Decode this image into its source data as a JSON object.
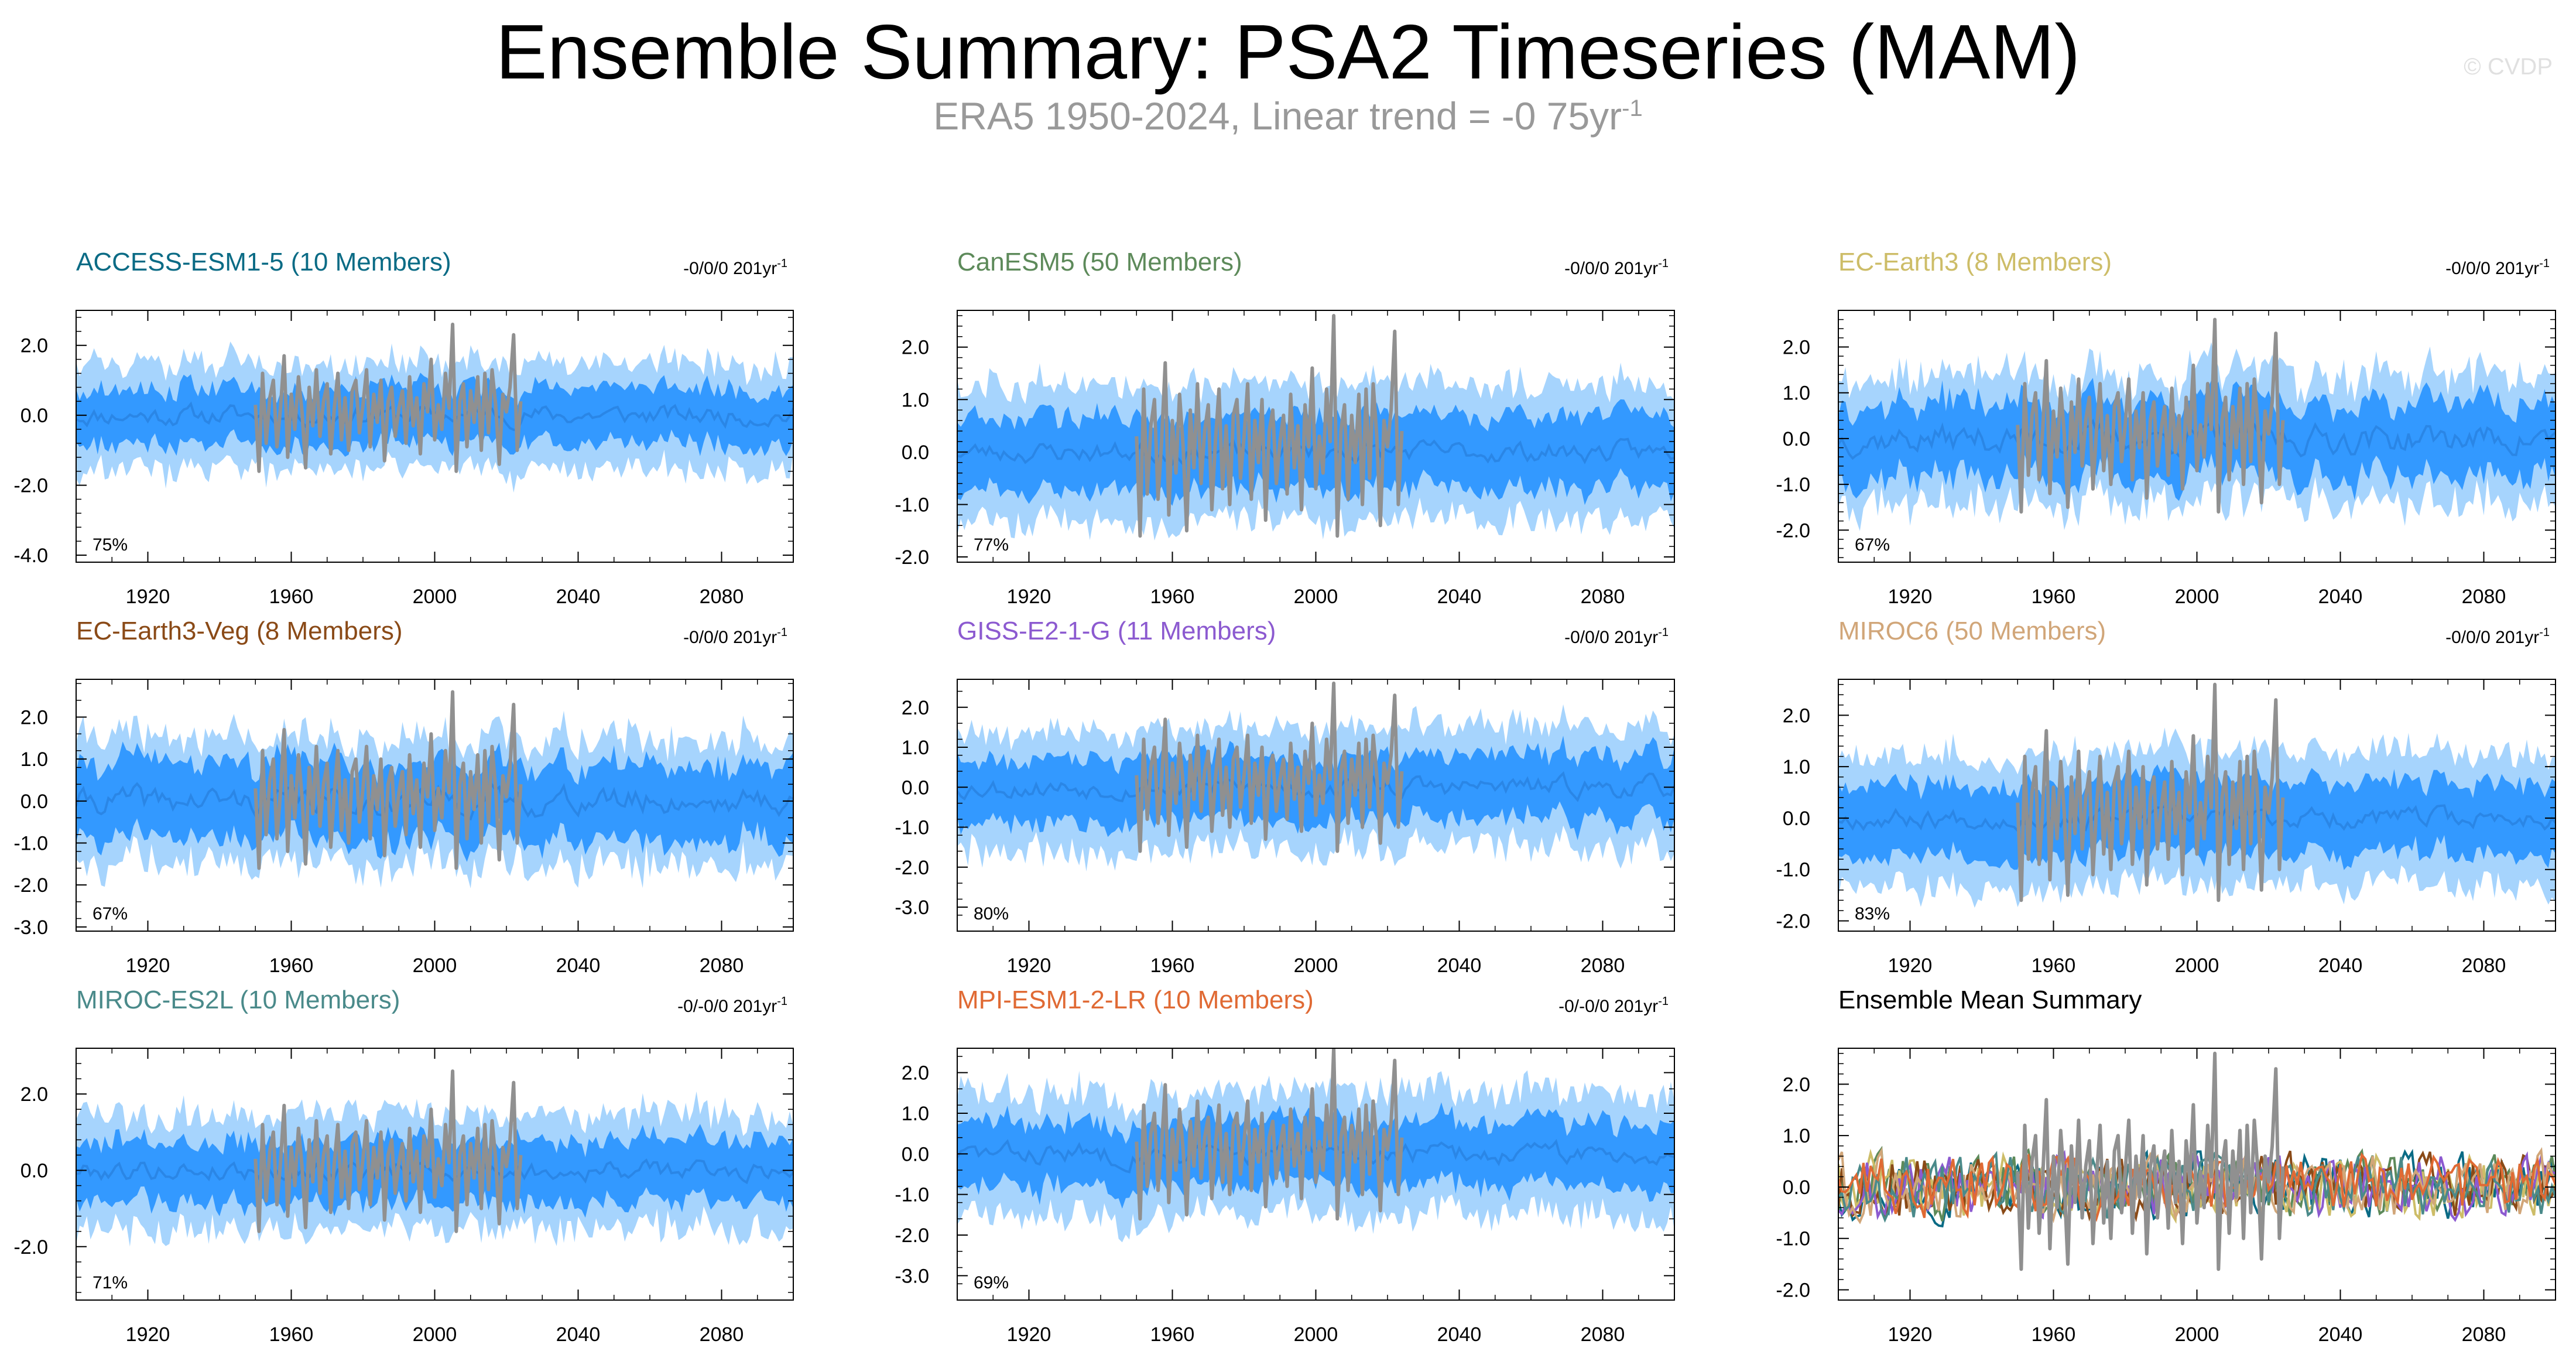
{
  "title": "Ensemble Summary: PSA2 Timeseries (MAM)",
  "subtitle_main": "ERA5 1950-2024, Linear trend = -0 75yr",
  "subtitle_exp": "-1",
  "watermark": "© CVDP",
  "colors": {
    "outer": "#a6d4fd",
    "inner": "#3399ff",
    "mean": "#2a86e6",
    "obs": "#909090"
  },
  "chart_data": [
    {
      "type": "area",
      "title": "ACCESS-ESM1-5 (10 Members)",
      "title_color": "#0a6b85",
      "trend": "-0/0/0 201yr",
      "trend_exp": "-1",
      "percent": "75%",
      "xlim": [
        1900,
        2100
      ],
      "ylim": [
        -4.2,
        3.0
      ],
      "yticks": [
        2.0,
        0.0,
        -2.0,
        -4.0
      ],
      "ytick_labels": [
        "2.0",
        "0.0",
        "-2.0",
        "-4.0"
      ],
      "xticks": [
        1920,
        1960,
        2000,
        2040,
        2080
      ],
      "xtick_labels": [
        "1920",
        "1960",
        "2000",
        "2040",
        "2080"
      ],
      "spread_outer": 1.5,
      "spread_inner": 0.8,
      "noise": 0.35,
      "mean_amp": 0.22,
      "seed": 11
    },
    {
      "type": "area",
      "title": "CanESM5 (50 Members)",
      "title_color": "#5d8a5a",
      "trend": "-0/0/0 201yr",
      "trend_exp": "-1",
      "percent": "77%",
      "xlim": [
        1900,
        2100
      ],
      "ylim": [
        -2.1,
        2.7
      ],
      "yticks": [
        2.0,
        1.0,
        0.0,
        -1.0,
        -2.0
      ],
      "ytick_labels": [
        "2.0",
        "1.0",
        "0.0",
        "-1.0",
        "-2.0"
      ],
      "xticks": [
        1920,
        1960,
        2000,
        2040,
        2080
      ],
      "xtick_labels": [
        "1920",
        "1960",
        "2000",
        "2040",
        "2080"
      ],
      "spread_outer": 1.3,
      "spread_inner": 0.7,
      "noise": 0.25,
      "mean_amp": 0.15,
      "seed": 23
    },
    {
      "type": "area",
      "title": "EC-Earth3 (8 Members)",
      "title_color": "#cdbd68",
      "trend": "-0/0/0 201yr",
      "trend_exp": "-1",
      "percent": "67%",
      "xlim": [
        1900,
        2100
      ],
      "ylim": [
        -2.7,
        2.8
      ],
      "yticks": [
        2.0,
        1.0,
        0.0,
        -1.0,
        -2.0
      ],
      "ytick_labels": [
        "2.0",
        "1.0",
        "0.0",
        "-1.0",
        "-2.0"
      ],
      "xticks": [
        1920,
        1960,
        2000,
        2040,
        2080
      ],
      "xtick_labels": [
        "1920",
        "1960",
        "2000",
        "2040",
        "2080"
      ],
      "spread_outer": 1.4,
      "spread_inner": 0.8,
      "noise": 0.35,
      "mean_amp": 0.25,
      "seed": 37
    },
    {
      "type": "area",
      "title": "EC-Earth3-Veg (8 Members)",
      "title_color": "#8a4a17",
      "trend": "-0/0/0 201yr",
      "trend_exp": "-1",
      "percent": "67%",
      "xlim": [
        1900,
        2100
      ],
      "ylim": [
        -3.1,
        2.9
      ],
      "yticks": [
        2.0,
        1.0,
        0.0,
        -1.0,
        -2.0,
        -3.0
      ],
      "ytick_labels": [
        "2.0",
        "1.0",
        "0.0",
        "-1.0",
        "-2.0",
        "-3.0"
      ],
      "xticks": [
        1920,
        1960,
        2000,
        2040,
        2080
      ],
      "xtick_labels": [
        "1920",
        "1960",
        "2000",
        "2040",
        "2080"
      ],
      "spread_outer": 1.5,
      "spread_inner": 0.9,
      "noise": 0.35,
      "mean_amp": 0.25,
      "seed": 41
    },
    {
      "type": "area",
      "title": "GISS-E2-1-G (11 Members)",
      "title_color": "#8c5ad0",
      "trend": "-0/0/0 201yr",
      "trend_exp": "-1",
      "percent": "80%",
      "xlim": [
        1900,
        2100
      ],
      "ylim": [
        -3.6,
        2.7
      ],
      "yticks": [
        2.0,
        1.0,
        0.0,
        -1.0,
        -2.0,
        -3.0
      ],
      "ytick_labels": [
        "2.0",
        "1.0",
        "0.0",
        "-1.0",
        "-2.0",
        "-3.0"
      ],
      "xticks": [
        1920,
        1960,
        2000,
        2040,
        2080
      ],
      "xtick_labels": [
        "1920",
        "1960",
        "2000",
        "2040",
        "2080"
      ],
      "spread_outer": 1.5,
      "spread_inner": 0.8,
      "noise": 0.35,
      "mean_amp": 0.2,
      "seed": 53
    },
    {
      "type": "area",
      "title": "MIROC6 (50 Members)",
      "title_color": "#d1a679",
      "trend": "-0/0/0 201yr",
      "trend_exp": "-1",
      "percent": "83%",
      "xlim": [
        1900,
        2100
      ],
      "ylim": [
        -2.2,
        2.7
      ],
      "yticks": [
        2.0,
        1.0,
        0.0,
        -1.0,
        -2.0
      ],
      "ytick_labels": [
        "2.0",
        "1.0",
        "0.0",
        "-1.0",
        "-2.0"
      ],
      "xticks": [
        1920,
        1960,
        2000,
        2040,
        2080
      ],
      "xtick_labels": [
        "1920",
        "1960",
        "2000",
        "2040",
        "2080"
      ],
      "spread_outer": 1.3,
      "spread_inner": 0.7,
      "noise": 0.25,
      "mean_amp": 0.15,
      "seed": 67
    },
    {
      "type": "area",
      "title": "MIROC-ES2L (10 Members)",
      "title_color": "#4a8a8a",
      "trend": "-0/-0/0 201yr",
      "trend_exp": "-1",
      "percent": "71%",
      "xlim": [
        1900,
        2100
      ],
      "ylim": [
        -3.4,
        3.2
      ],
      "yticks": [
        2.0,
        0.0,
        -2.0
      ],
      "ytick_labels": [
        "2.0",
        "0.0",
        "-2.0"
      ],
      "xticks": [
        1920,
        1960,
        2000,
        2040,
        2080
      ],
      "xtick_labels": [
        "1920",
        "1960",
        "2000",
        "2040",
        "2080"
      ],
      "spread_outer": 1.5,
      "spread_inner": 0.8,
      "noise": 0.35,
      "mean_amp": 0.2,
      "seed": 79
    },
    {
      "type": "area",
      "title": "MPI-ESM1-2-LR (10 Members)",
      "title_color": "#e06a34",
      "trend": "-0/-0/0 201yr",
      "trend_exp": "-1",
      "percent": "69%",
      "xlim": [
        1900,
        2100
      ],
      "ylim": [
        -3.6,
        2.6
      ],
      "yticks": [
        2.0,
        1.0,
        0.0,
        -1.0,
        -2.0,
        -3.0
      ],
      "ytick_labels": [
        "2.0",
        "1.0",
        "0.0",
        "-1.0",
        "-2.0",
        "-3.0"
      ],
      "xticks": [
        1920,
        1960,
        2000,
        2040,
        2080
      ],
      "xtick_labels": [
        "1920",
        "1960",
        "2000",
        "2040",
        "2080"
      ],
      "spread_outer": 1.5,
      "spread_inner": 0.8,
      "noise": 0.35,
      "mean_amp": 0.2,
      "seed": 83
    },
    {
      "type": "line",
      "title": "Ensemble Mean Summary",
      "title_color": "#000000",
      "trend": "",
      "trend_exp": "",
      "percent": "",
      "xlim": [
        1900,
        2100
      ],
      "ylim": [
        -2.2,
        2.7
      ],
      "yticks": [
        2.0,
        1.0,
        0.0,
        -1.0,
        -2.0
      ],
      "ytick_labels": [
        "2.0",
        "1.0",
        "0.0",
        "-1.0",
        "-2.0"
      ],
      "xticks": [
        1920,
        1960,
        2000,
        2040,
        2080
      ],
      "xtick_labels": [
        "1920",
        "1960",
        "2000",
        "2040",
        "2080"
      ],
      "series_colors": [
        "#0a6b85",
        "#5d8a5a",
        "#cdbd68",
        "#8a4a17",
        "#8c5ad0",
        "#d1a679",
        "#4a8a8a",
        "#e06a34"
      ],
      "seed": 97
    }
  ],
  "observations": {
    "label": "ERA5",
    "start_year": 1950,
    "values": [
      0.3,
      -1.6,
      1.2,
      -0.8,
      0.5,
      1.0,
      -0.9,
      0.2,
      1.7,
      -1.2,
      0.6,
      -0.4,
      1.1,
      0.1,
      -1.5,
      0.8,
      -0.3,
      1.3,
      -0.6,
      0.4,
      0.9,
      -1.1,
      0.2,
      1.2,
      -0.7,
      0.5,
      -1.0,
      0.7,
      1.0,
      -0.5,
      0.3,
      1.3,
      -0.9,
      0.6,
      -0.2,
      1.0,
      -1.3,
      0.4,
      0.8,
      -0.6,
      0.2,
      0.7,
      -0.8,
      1.1,
      -0.3,
      0.5,
      -1.1,
      0.9,
      0.1,
      1.6,
      -0.7,
      0.3,
      -0.4,
      1.2,
      0.2,
      2.6,
      -1.6,
      0.4,
      0.9,
      -0.9,
      0.7,
      -0.2,
      1.1,
      -1.0,
      1.2,
      -0.5,
      1.3,
      0.3,
      -1.4,
      0.6,
      0.1,
      0.8,
      2.3,
      -1.0,
      0.4
    ]
  }
}
